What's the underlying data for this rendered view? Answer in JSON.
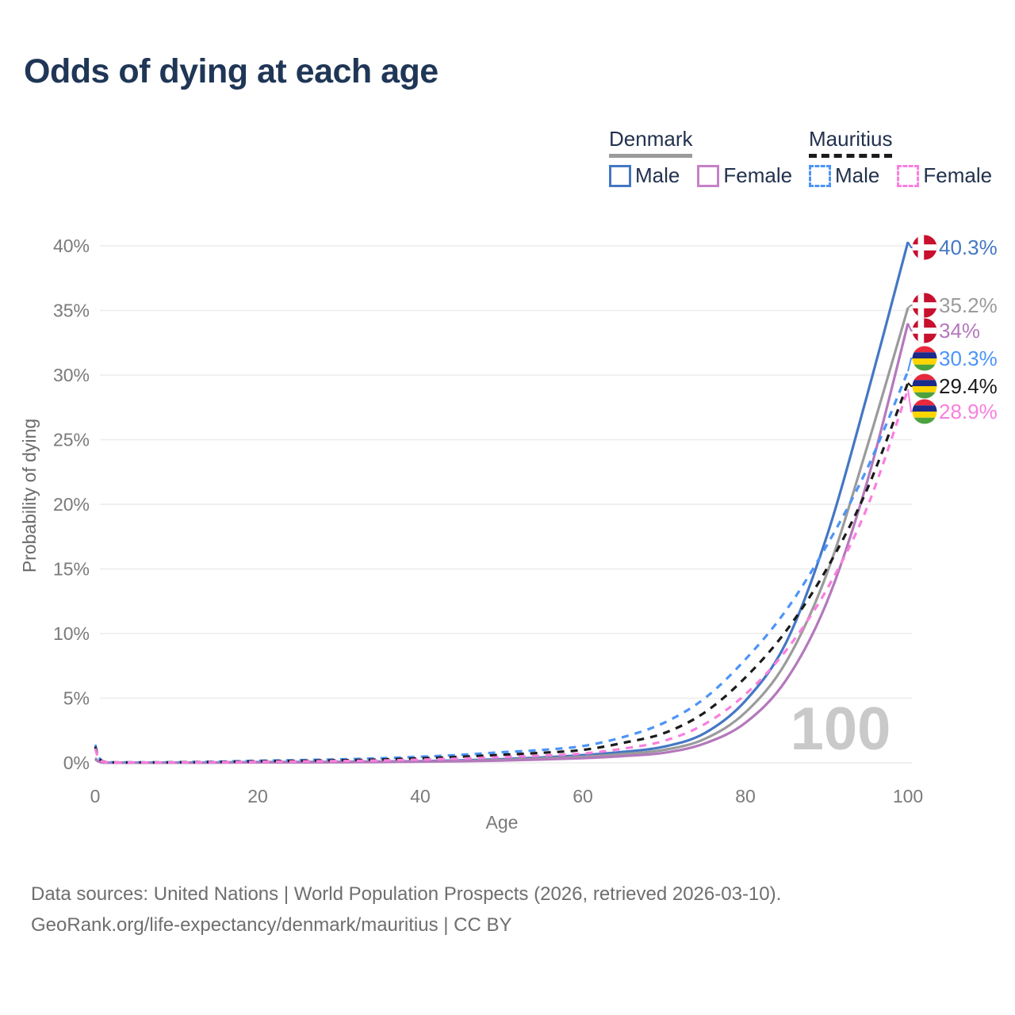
{
  "title": "Odds of dying at each age",
  "legend": {
    "groups": [
      {
        "country": "Denmark",
        "line_style": "solid",
        "line_color": "#9B9B9B",
        "items": [
          {
            "label": "Male",
            "color": "#4477C4",
            "box_style": "solid"
          },
          {
            "label": "Female",
            "color": "#C581C7",
            "box_style": "solid"
          }
        ]
      },
      {
        "country": "Mauritius",
        "line_style": "dashed",
        "line_color": "#1B1B1B",
        "items": [
          {
            "label": "Male",
            "color": "#4D94F7",
            "box_style": "dashed"
          },
          {
            "label": "Female",
            "color": "#FB7FE1",
            "box_style": "dashed"
          }
        ]
      }
    ]
  },
  "chart_data": {
    "type": "line",
    "title": "Odds of dying at each age",
    "xlabel": "Age",
    "ylabel": "Probability of dying",
    "xlim": [
      0,
      100
    ],
    "ylim": [
      0,
      40
    ],
    "x_ticks": [
      0,
      20,
      40,
      60,
      80,
      100
    ],
    "y_ticks": [
      "0%",
      "5%",
      "10%",
      "15%",
      "20%",
      "25%",
      "30%",
      "35%",
      "40%"
    ],
    "grid": "horizontal",
    "legend_position": "top-right",
    "watermark": "100",
    "x": [
      0,
      1,
      5,
      10,
      15,
      20,
      25,
      30,
      35,
      40,
      45,
      50,
      55,
      60,
      65,
      70,
      75,
      80,
      85,
      90,
      95,
      100
    ],
    "series": [
      {
        "name": "Denmark Male",
        "color": "#4477C4",
        "dashed": false,
        "flag": "denmark",
        "end_label": "40.3%",
        "values": [
          0.35,
          0.02,
          0.01,
          0.01,
          0.03,
          0.06,
          0.07,
          0.08,
          0.1,
          0.13,
          0.19,
          0.29,
          0.42,
          0.6,
          0.85,
          1.25,
          2.3,
          4.8,
          9.3,
          17.5,
          28.5,
          40.3
        ]
      },
      {
        "name": "Denmark",
        "color": "#9B9B9B",
        "dashed": false,
        "flag": "denmark",
        "end_label": "35.2%",
        "values": [
          0.3,
          0.02,
          0.01,
          0.01,
          0.02,
          0.04,
          0.05,
          0.06,
          0.08,
          0.11,
          0.15,
          0.23,
          0.33,
          0.47,
          0.68,
          1.0,
          1.85,
          3.9,
          7.8,
          14.6,
          24.5,
          35.2
        ]
      },
      {
        "name": "Denmark Female",
        "color": "#B478BC",
        "dashed": false,
        "flag": "denmark",
        "end_label": "34%",
        "values": [
          0.28,
          0.02,
          0.01,
          0.01,
          0.02,
          0.03,
          0.03,
          0.04,
          0.06,
          0.09,
          0.12,
          0.18,
          0.26,
          0.36,
          0.52,
          0.78,
          1.5,
          3.1,
          6.4,
          12.4,
          21.8,
          34.0
        ]
      },
      {
        "name": "Mauritius Male",
        "color": "#4D94F7",
        "dashed": true,
        "flag": "mauritius",
        "end_label": "30.3%",
        "values": [
          1.4,
          0.1,
          0.04,
          0.05,
          0.09,
          0.16,
          0.21,
          0.27,
          0.35,
          0.47,
          0.62,
          0.82,
          1.0,
          1.3,
          2.0,
          3.1,
          5.0,
          8.0,
          11.8,
          16.8,
          22.8,
          30.3
        ]
      },
      {
        "name": "Mauritius",
        "color": "#1B1B1B",
        "dashed": true,
        "flag": "mauritius",
        "end_label": "29.4%",
        "values": [
          1.25,
          0.09,
          0.03,
          0.04,
          0.07,
          0.12,
          0.16,
          0.2,
          0.26,
          0.35,
          0.47,
          0.62,
          0.78,
          1.0,
          1.55,
          2.3,
          3.9,
          6.6,
          10.2,
          15.0,
          21.2,
          29.4
        ]
      },
      {
        "name": "Mauritius Female",
        "color": "#F97FDE",
        "dashed": true,
        "flag": "mauritius",
        "end_label": "28.9%",
        "values": [
          1.1,
          0.08,
          0.03,
          0.03,
          0.05,
          0.08,
          0.11,
          0.14,
          0.18,
          0.25,
          0.33,
          0.44,
          0.56,
          0.72,
          1.1,
          1.7,
          3.0,
          5.3,
          8.7,
          13.4,
          19.8,
          28.9
        ]
      }
    ],
    "flag_colors": {
      "denmark": {
        "field": "#C8102E",
        "cross": "#FFFFFF"
      },
      "mauritius": {
        "stripes": [
          "#E8283C",
          "#1C2A8A",
          "#FFD500",
          "#4CA23F"
        ]
      }
    }
  },
  "footer": {
    "line1": "Data sources: United Nations | World Population Prospects (2026, retrieved 2026-03-10).",
    "line2": "GeoRank.org/life-expectancy/denmark/mauritius | CC BY"
  }
}
